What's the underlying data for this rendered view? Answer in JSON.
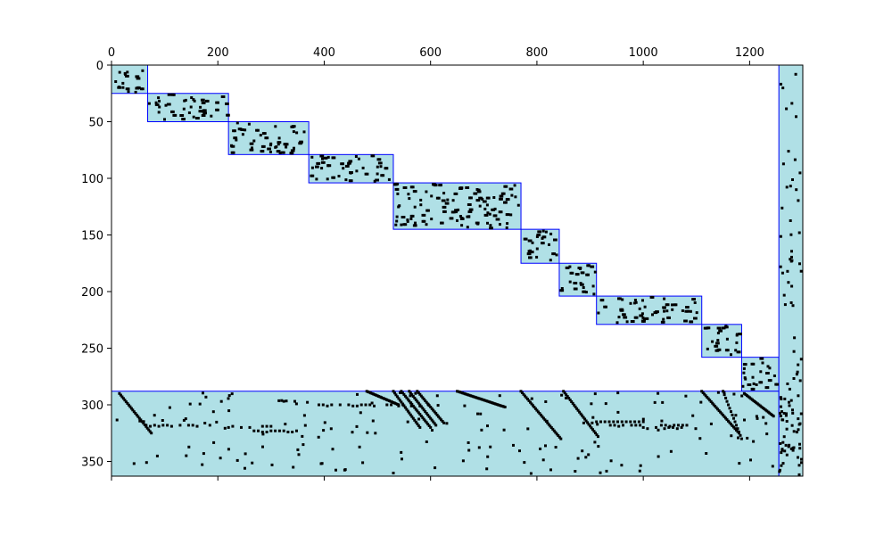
{
  "colors": {
    "block_fill": "#b0e0e6",
    "block_edge": "#0000ff",
    "nonzero_marker": "#000000",
    "axes": "#000000",
    "background": "#ffffff"
  },
  "chart_data": {
    "type": "heatmap",
    "description_kind": "sparsity-pattern",
    "title": "",
    "xlabel": "",
    "ylabel": "",
    "x_axis_position": "top",
    "y_axis_inverted": true,
    "grid": false,
    "legend": "none",
    "xlim": [
      0,
      1300
    ],
    "ylim": [
      0,
      363
    ],
    "xticks": [
      0,
      200,
      400,
      600,
      800,
      1000,
      1200
    ],
    "yticks": [
      0,
      50,
      100,
      150,
      200,
      250,
      300,
      350
    ],
    "diagonal_blocks": [
      {
        "col_start": 0,
        "col_end": 68,
        "row_start": 0,
        "row_end": 25
      },
      {
        "col_start": 68,
        "col_end": 220,
        "row_start": 25,
        "row_end": 50
      },
      {
        "col_start": 220,
        "col_end": 371,
        "row_start": 50,
        "row_end": 79
      },
      {
        "col_start": 371,
        "col_end": 530,
        "row_start": 79,
        "row_end": 104
      },
      {
        "col_start": 530,
        "col_end": 770,
        "row_start": 104,
        "row_end": 145
      },
      {
        "col_start": 770,
        "col_end": 842,
        "row_start": 145,
        "row_end": 175
      },
      {
        "col_start": 842,
        "col_end": 912,
        "row_start": 175,
        "row_end": 204
      },
      {
        "col_start": 912,
        "col_end": 1110,
        "row_start": 204,
        "row_end": 229
      },
      {
        "col_start": 1110,
        "col_end": 1185,
        "row_start": 229,
        "row_end": 258
      },
      {
        "col_start": 1185,
        "col_end": 1255,
        "row_start": 258,
        "row_end": 288
      }
    ],
    "border_blocks": [
      {
        "name": "bottom-coupling-rows",
        "col_start": 0,
        "col_end": 1255,
        "row_start": 288,
        "row_end": 363
      },
      {
        "name": "right-coupling-columns",
        "col_start": 1255,
        "col_end": 1300,
        "row_start": 0,
        "row_end": 363
      }
    ]
  }
}
